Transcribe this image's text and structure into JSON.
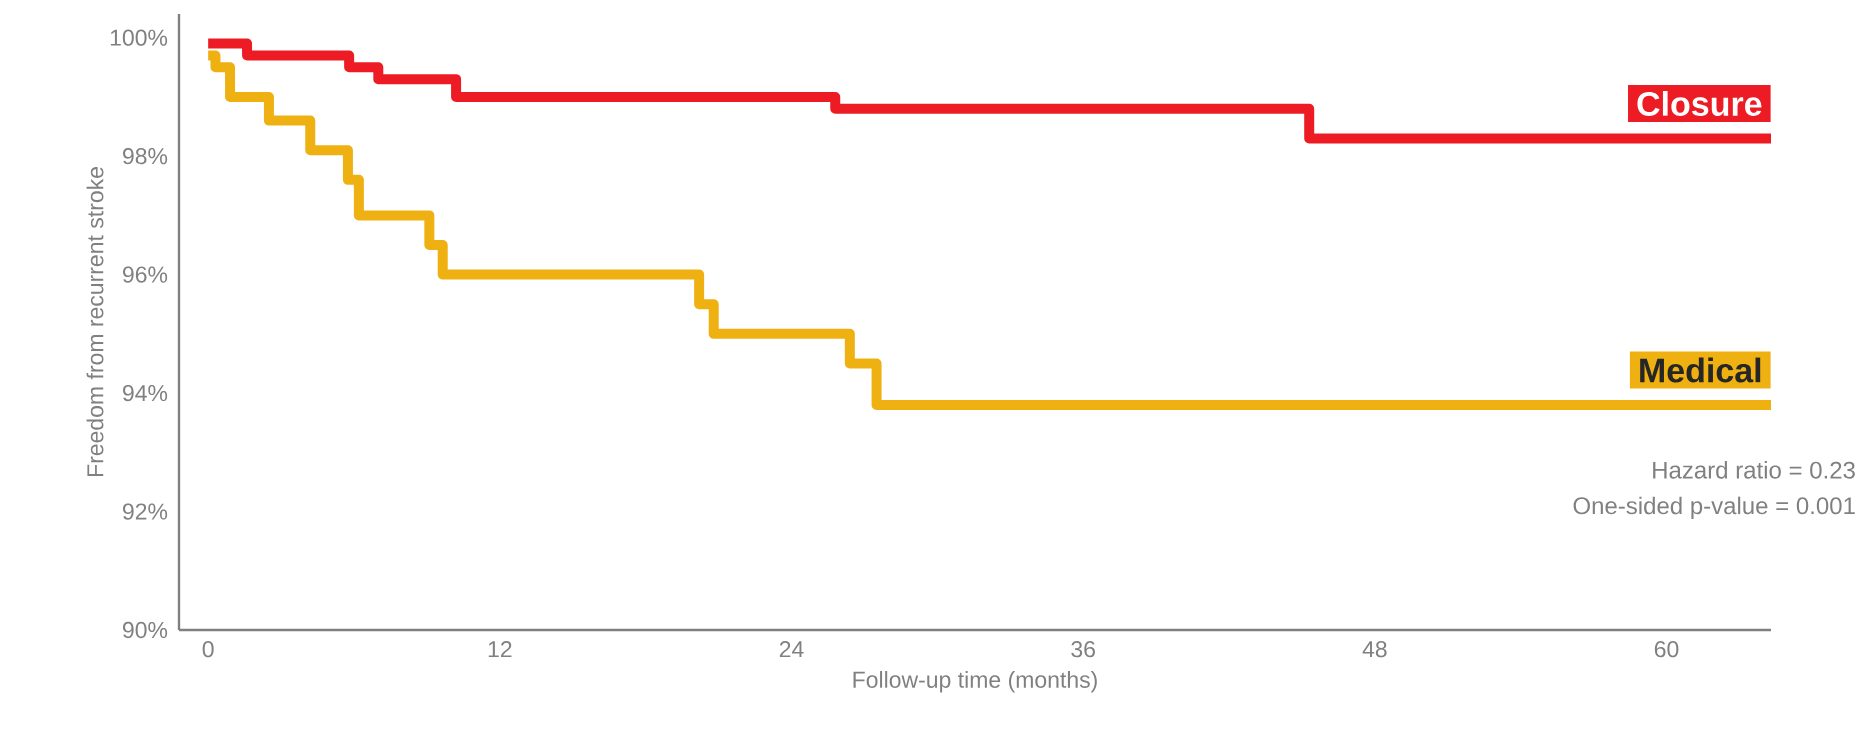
{
  "chart_data": {
    "type": "step",
    "xlabel": "Follow-up time (months)",
    "ylabel": "Freedom from recurrent stroke",
    "xlim": [
      -1.2,
      64.3
    ],
    "ylim": [
      90,
      100.4
    ],
    "xticks": [
      0,
      12,
      24,
      36,
      48,
      60
    ],
    "yticks": [
      {
        "value": 90,
        "label": "90%"
      },
      {
        "value": 92,
        "label": "92%"
      },
      {
        "value": 94,
        "label": "94%"
      },
      {
        "value": 96,
        "label": "96%"
      },
      {
        "value": 98,
        "label": "98%"
      },
      {
        "value": 100,
        "label": "100%"
      }
    ],
    "series": [
      {
        "name": "Closure",
        "color": "#ed1c24",
        "x": [
          0,
          1.6,
          5.8,
          7.0,
          10.2,
          25.8,
          45.3,
          64.3
        ],
        "values": [
          99.9,
          99.7,
          99.5,
          99.3,
          99.0,
          98.8,
          98.3,
          98.3
        ]
      },
      {
        "name": "Medical",
        "color": "#eeb111",
        "x": [
          0,
          0.3,
          0.9,
          2.5,
          4.2,
          5.75,
          6.2,
          9.1,
          9.65,
          20.2,
          20.8,
          26.4,
          27.5,
          64.3
        ],
        "values": [
          99.7,
          99.5,
          99.0,
          98.6,
          98.1,
          97.6,
          97.0,
          96.5,
          96.0,
          95.5,
          95.0,
          94.5,
          93.8,
          93.8
        ]
      }
    ],
    "annotations": [
      "Hazard ratio = 0.23",
      "One-sided p-value = 0.001"
    ],
    "grid": false
  }
}
